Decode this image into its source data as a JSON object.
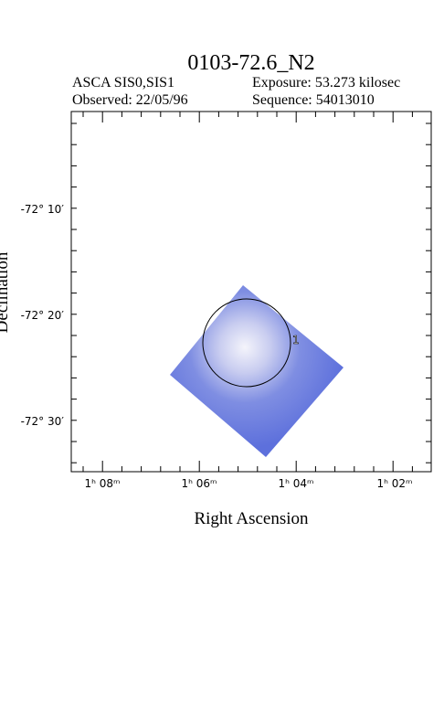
{
  "title": "0103-72.6_N2",
  "info": {
    "instrument": "ASCA SIS0,SIS1",
    "exposure": "Exposure: 53.273 kilosec",
    "observed": "Observed: 22/05/96",
    "sequence": "Sequence: 54013010"
  },
  "y_axis": {
    "label": "Declination",
    "ticks": [
      "-72° 10′",
      "-72° 20′",
      "-72° 30′"
    ]
  },
  "x_axis": {
    "label": "Right Ascension",
    "ticks": [
      "1ʰ 08ᵐ",
      "1ʰ 06ᵐ",
      "1ʰ 04ᵐ",
      "1ʰ 02ᵐ"
    ]
  },
  "regions": [
    {
      "label": "1"
    }
  ]
}
